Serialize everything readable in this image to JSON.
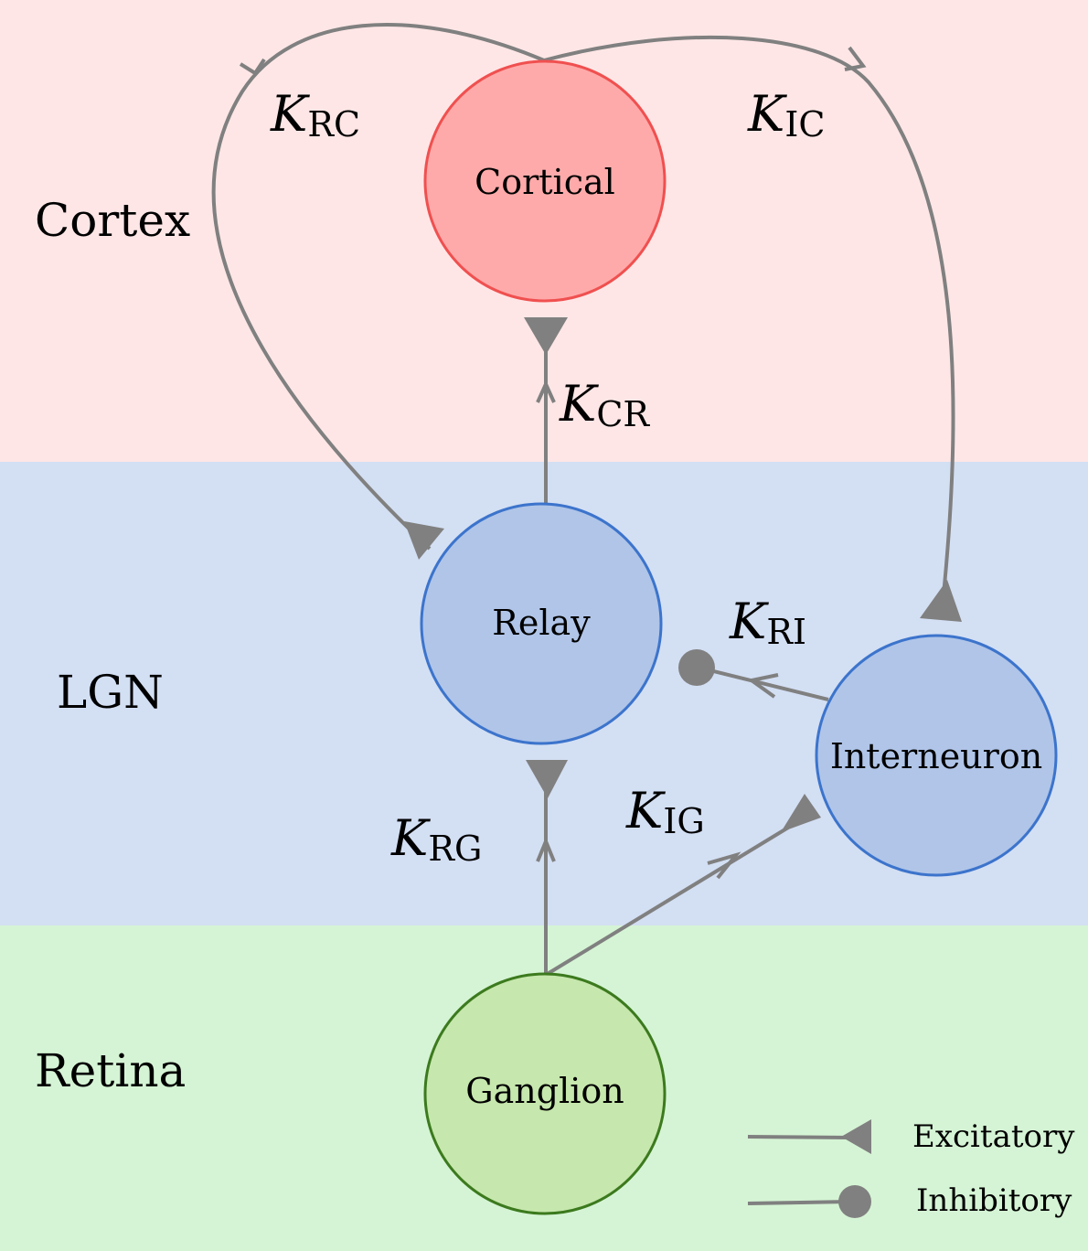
{
  "regions": {
    "cortex": {
      "label": "Cortex",
      "color": "#ffe6e6"
    },
    "lgn": {
      "label": "LGN",
      "color": "#d3dff3"
    },
    "retina": {
      "label": "Retina",
      "color": "#d5f4d5"
    }
  },
  "nodes": {
    "cortical": {
      "label": "Cortical",
      "fill": "#ffaaaa",
      "stroke": "#f05050"
    },
    "relay": {
      "label": "Relay",
      "fill": "#b0c5e8",
      "stroke": "#3c74cc"
    },
    "interneuron": {
      "label": "Interneuron",
      "fill": "#b0c5e8",
      "stroke": "#3c74cc"
    },
    "ganglion": {
      "label": "Ganglion",
      "fill": "#c6e7ad",
      "stroke": "#3c7a1e"
    }
  },
  "edges": {
    "rc": {
      "symbol": "K",
      "subscript": "RC",
      "type": "Excitatory"
    },
    "ic": {
      "symbol": "K",
      "subscript": "IC",
      "type": "Excitatory"
    },
    "cr": {
      "symbol": "K",
      "subscript": "CR",
      "type": "Excitatory"
    },
    "ri": {
      "symbol": "K",
      "subscript": "RI",
      "type": "Inhibitory"
    },
    "rg": {
      "symbol": "K",
      "subscript": "RG",
      "type": "Excitatory"
    },
    "ig": {
      "symbol": "K",
      "subscript": "IG",
      "type": "Excitatory"
    }
  },
  "legend": {
    "excitatory": "Excitatory",
    "inhibitory": "Inhibitory"
  },
  "edge_color": "#808080"
}
